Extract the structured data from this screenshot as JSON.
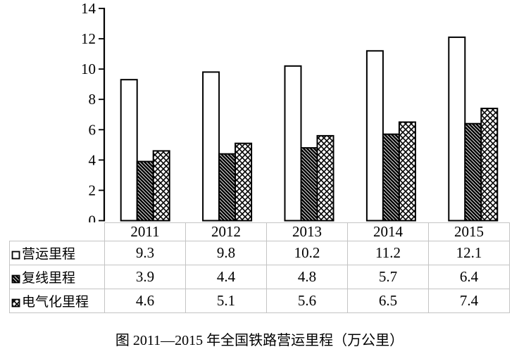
{
  "chart_data": {
    "type": "bar",
    "categories": [
      "2011",
      "2012",
      "2013",
      "2014",
      "2015"
    ],
    "series": [
      {
        "name": "营运里程",
        "pattern": "solid-white",
        "values": [
          9.3,
          9.8,
          10.2,
          11.2,
          12.1
        ]
      },
      {
        "name": "复线里程",
        "pattern": "diagonal-hatch",
        "values": [
          3.9,
          4.4,
          4.8,
          5.7,
          6.4
        ]
      },
      {
        "name": "电气化里程",
        "pattern": "cross-hatch",
        "values": [
          4.6,
          5.1,
          5.6,
          6.5,
          7.4
        ]
      }
    ],
    "title": "图 2011—2015 年全国铁路营运里程（万公里）",
    "xlabel": "",
    "ylabel": "",
    "ylim": [
      0,
      14
    ],
    "y_ticks": [
      0,
      2,
      4,
      6,
      8,
      10,
      12,
      14
    ],
    "grid": false,
    "legend_position": "table-left-column"
  },
  "caption": "图 2011—2015 年全国铁路营运里程（万公里）",
  "colors": {
    "bar_outline": "#000000",
    "bar_fill_series1": "#ffffff",
    "hatch_color": "#000000",
    "table_border": "#c4c4c4",
    "text": "#000000",
    "background": "#ffffff"
  }
}
